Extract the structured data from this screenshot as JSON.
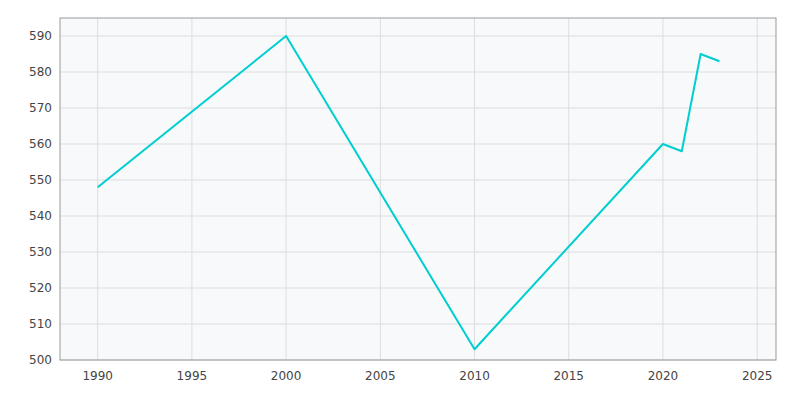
{
  "chart_data": {
    "type": "line",
    "x": [
      1990,
      2000,
      2010,
      2020,
      2021,
      2022,
      2023
    ],
    "values": [
      548,
      590,
      503,
      560,
      558,
      585,
      583
    ],
    "color": "#00CED1",
    "xlim": [
      1988,
      2026
    ],
    "ylim": [
      500,
      595
    ],
    "xticks": [
      1990,
      1995,
      2000,
      2005,
      2010,
      2015,
      2020,
      2025
    ],
    "yticks": [
      500,
      510,
      520,
      530,
      540,
      550,
      560,
      570,
      580,
      590
    ],
    "grid": true
  }
}
